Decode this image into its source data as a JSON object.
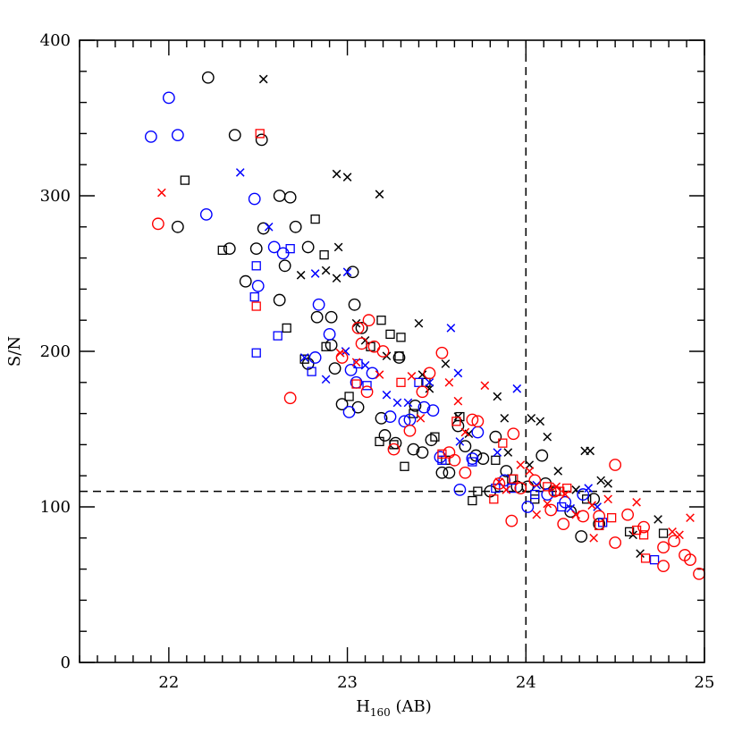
{
  "chart_data": {
    "type": "scatter",
    "xlabel_main": "H",
    "xlabel_sub": "160",
    "xlabel_suffix": " (AB)",
    "ylabel": "S/N",
    "xlim": [
      21.5,
      25
    ],
    "ylim": [
      0,
      400
    ],
    "xticks": [
      22,
      23,
      24,
      25
    ],
    "yticks": [
      0,
      100,
      200,
      300,
      400
    ],
    "x_minor_step": 0.1,
    "y_minor_step": 20,
    "grid": false,
    "reference_lines": [
      {
        "orientation": "vertical",
        "value": 24,
        "style": "dashed"
      },
      {
        "orientation": "horizontal",
        "value": 110,
        "style": "dashed"
      }
    ],
    "colors": {
      "black": "#000000",
      "blue": "#0000ff",
      "red": "#ff0000"
    },
    "series": [
      {
        "color": "black",
        "marker": "circle",
        "points": [
          [
            22.22,
            376
          ],
          [
            22.05,
            280
          ],
          [
            22.37,
            339
          ],
          [
            22.52,
            336
          ],
          [
            22.53,
            279
          ],
          [
            22.49,
            266
          ],
          [
            22.34,
            266
          ],
          [
            22.43,
            245
          ],
          [
            22.62,
            300
          ],
          [
            22.68,
            299
          ],
          [
            22.71,
            280
          ],
          [
            22.65,
            255
          ],
          [
            22.78,
            267
          ],
          [
            22.62,
            233
          ],
          [
            22.83,
            222
          ],
          [
            22.91,
            222
          ],
          [
            22.78,
            192
          ],
          [
            22.91,
            204
          ],
          [
            22.93,
            189
          ],
          [
            22.97,
            166
          ],
          [
            23.04,
            230
          ],
          [
            23.08,
            215
          ],
          [
            23.06,
            164
          ],
          [
            23.03,
            251
          ],
          [
            23.19,
            157
          ],
          [
            23.21,
            146
          ],
          [
            23.27,
            141
          ],
          [
            23.29,
            196
          ],
          [
            23.38,
            165
          ],
          [
            23.37,
            137
          ],
          [
            23.42,
            135
          ],
          [
            23.47,
            143
          ],
          [
            23.53,
            122
          ],
          [
            23.57,
            122
          ],
          [
            23.62,
            152
          ],
          [
            23.66,
            139
          ],
          [
            23.72,
            133
          ],
          [
            23.76,
            131
          ],
          [
            23.8,
            110
          ],
          [
            23.83,
            145
          ],
          [
            23.89,
            123
          ],
          [
            23.95,
            113
          ],
          [
            24.01,
            113
          ],
          [
            24.09,
            133
          ],
          [
            24.11,
            115
          ],
          [
            24.25,
            97
          ],
          [
            24.31,
            81
          ],
          [
            24.38,
            105
          ],
          [
            24.41,
            89
          ]
        ]
      },
      {
        "color": "black",
        "marker": "cross",
        "points": [
          [
            22.53,
            375
          ],
          [
            22.94,
            314
          ],
          [
            23.0,
            312
          ],
          [
            23.18,
            301
          ],
          [
            22.95,
            267
          ],
          [
            22.88,
            252
          ],
          [
            22.94,
            247
          ],
          [
            22.74,
            249
          ],
          [
            23.05,
            218
          ],
          [
            23.1,
            207
          ],
          [
            23.22,
            197
          ],
          [
            23.4,
            218
          ],
          [
            23.42,
            185
          ],
          [
            23.46,
            176
          ],
          [
            23.55,
            192
          ],
          [
            23.62,
            158
          ],
          [
            23.68,
            147
          ],
          [
            23.84,
            171
          ],
          [
            23.88,
            157
          ],
          [
            23.9,
            135
          ],
          [
            24.03,
            157
          ],
          [
            24.08,
            155
          ],
          [
            24.12,
            145
          ],
          [
            24.02,
            127
          ],
          [
            24.18,
            123
          ],
          [
            24.28,
            111
          ],
          [
            24.33,
            136
          ],
          [
            24.36,
            136
          ],
          [
            24.42,
            117
          ],
          [
            24.46,
            115
          ],
          [
            24.6,
            82
          ],
          [
            24.64,
            70
          ],
          [
            24.74,
            92
          ]
        ]
      },
      {
        "color": "black",
        "marker": "square",
        "points": [
          [
            22.09,
            310
          ],
          [
            22.3,
            265
          ],
          [
            22.82,
            285
          ],
          [
            22.87,
            262
          ],
          [
            22.66,
            215
          ],
          [
            22.76,
            195
          ],
          [
            22.88,
            203
          ],
          [
            23.01,
            171
          ],
          [
            23.13,
            203
          ],
          [
            23.19,
            220
          ],
          [
            23.24,
            211
          ],
          [
            23.3,
            209
          ],
          [
            23.29,
            197
          ],
          [
            23.18,
            142
          ],
          [
            23.26,
            140
          ],
          [
            23.32,
            126
          ],
          [
            23.37,
            160
          ],
          [
            23.44,
            180
          ],
          [
            23.49,
            145
          ],
          [
            23.55,
            130
          ],
          [
            23.63,
            158
          ],
          [
            23.7,
            104
          ],
          [
            23.73,
            110
          ],
          [
            23.83,
            130
          ],
          [
            23.92,
            118
          ],
          [
            24.05,
            105
          ],
          [
            24.17,
            110
          ],
          [
            24.34,
            105
          ],
          [
            24.41,
            88
          ],
          [
            24.58,
            84
          ],
          [
            24.77,
            83
          ]
        ]
      },
      {
        "color": "blue",
        "marker": "circle",
        "points": [
          [
            21.9,
            338
          ],
          [
            22.0,
            363
          ],
          [
            22.05,
            339
          ],
          [
            22.21,
            288
          ],
          [
            22.48,
            298
          ],
          [
            22.59,
            267
          ],
          [
            22.64,
            263
          ],
          [
            22.5,
            242
          ],
          [
            22.82,
            196
          ],
          [
            22.84,
            230
          ],
          [
            22.9,
            211
          ],
          [
            23.01,
            161
          ],
          [
            23.02,
            188
          ],
          [
            23.05,
            180
          ],
          [
            23.14,
            186
          ],
          [
            23.24,
            158
          ],
          [
            23.32,
            155
          ],
          [
            23.35,
            156
          ],
          [
            23.43,
            164
          ],
          [
            23.48,
            162
          ],
          [
            23.52,
            132
          ],
          [
            23.63,
            111
          ],
          [
            23.7,
            131
          ],
          [
            23.73,
            148
          ],
          [
            23.88,
            117
          ],
          [
            24.01,
            100
          ],
          [
            24.12,
            108
          ],
          [
            24.22,
            103
          ],
          [
            24.32,
            108
          ]
        ]
      },
      {
        "color": "blue",
        "marker": "cross",
        "points": [
          [
            22.4,
            315
          ],
          [
            22.56,
            280
          ],
          [
            22.82,
            250
          ],
          [
            22.76,
            196
          ],
          [
            22.88,
            182
          ],
          [
            22.99,
            200
          ],
          [
            23.0,
            251
          ],
          [
            23.1,
            191
          ],
          [
            23.22,
            172
          ],
          [
            23.28,
            167
          ],
          [
            23.34,
            167
          ],
          [
            23.46,
            180
          ],
          [
            23.58,
            215
          ],
          [
            23.62,
            186
          ],
          [
            23.63,
            142
          ],
          [
            23.95,
            176
          ],
          [
            23.84,
            135
          ],
          [
            24.06,
            114
          ],
          [
            24.25,
            99
          ],
          [
            24.35,
            112
          ],
          [
            24.4,
            100
          ]
        ]
      },
      {
        "color": "blue",
        "marker": "square",
        "points": [
          [
            22.49,
            255
          ],
          [
            22.48,
            235
          ],
          [
            22.49,
            199
          ],
          [
            22.68,
            266
          ],
          [
            22.61,
            210
          ],
          [
            22.8,
            187
          ],
          [
            23.06,
            192
          ],
          [
            23.11,
            178
          ],
          [
            23.4,
            180
          ],
          [
            23.53,
            130
          ],
          [
            23.7,
            129
          ],
          [
            23.83,
            112
          ],
          [
            23.92,
            112
          ],
          [
            24.05,
            108
          ],
          [
            24.2,
            100
          ],
          [
            24.43,
            90
          ],
          [
            24.72,
            66
          ]
        ]
      },
      {
        "color": "red",
        "marker": "circle",
        "points": [
          [
            21.94,
            282
          ],
          [
            22.68,
            170
          ],
          [
            22.97,
            196
          ],
          [
            23.06,
            215
          ],
          [
            23.12,
            220
          ],
          [
            23.08,
            205
          ],
          [
            23.15,
            203
          ],
          [
            23.2,
            200
          ],
          [
            23.11,
            174
          ],
          [
            23.26,
            137
          ],
          [
            23.35,
            149
          ],
          [
            23.42,
            174
          ],
          [
            23.46,
            186
          ],
          [
            23.53,
            199
          ],
          [
            23.57,
            135
          ],
          [
            23.6,
            130
          ],
          [
            23.66,
            122
          ],
          [
            23.7,
            156
          ],
          [
            23.73,
            155
          ],
          [
            23.85,
            115
          ],
          [
            23.93,
            147
          ],
          [
            23.92,
            91
          ],
          [
            23.97,
            112
          ],
          [
            24.05,
            117
          ],
          [
            24.16,
            110
          ],
          [
            24.21,
            89
          ],
          [
            24.14,
            98
          ],
          [
            24.32,
            94
          ],
          [
            24.41,
            94
          ],
          [
            24.5,
            127
          ],
          [
            24.5,
            77
          ],
          [
            24.57,
            95
          ],
          [
            24.66,
            87
          ],
          [
            24.77,
            74
          ],
          [
            24.77,
            62
          ],
          [
            24.83,
            78
          ],
          [
            24.89,
            69
          ],
          [
            24.92,
            66
          ],
          [
            24.97,
            57
          ]
        ]
      },
      {
        "color": "red",
        "marker": "cross",
        "points": [
          [
            21.96,
            302
          ],
          [
            22.96,
            199
          ],
          [
            23.05,
            193
          ],
          [
            23.18,
            185
          ],
          [
            23.36,
            184
          ],
          [
            23.41,
            157
          ],
          [
            23.57,
            180
          ],
          [
            23.62,
            168
          ],
          [
            23.66,
            148
          ],
          [
            23.77,
            178
          ],
          [
            23.85,
            116
          ],
          [
            23.89,
            111
          ],
          [
            23.97,
            127
          ],
          [
            24.02,
            123
          ],
          [
            24.06,
            95
          ],
          [
            24.12,
            102
          ],
          [
            24.17,
            113
          ],
          [
            24.22,
            108
          ],
          [
            24.28,
            95
          ],
          [
            24.37,
            101
          ],
          [
            24.38,
            80
          ],
          [
            24.46,
            105
          ],
          [
            24.62,
            103
          ],
          [
            24.82,
            84
          ],
          [
            24.86,
            82
          ],
          [
            24.92,
            93
          ]
        ]
      },
      {
        "color": "red",
        "marker": "square",
        "points": [
          [
            22.51,
            340
          ],
          [
            22.49,
            229
          ],
          [
            23.05,
            179
          ],
          [
            23.3,
            180
          ],
          [
            23.53,
            134
          ],
          [
            23.61,
            155
          ],
          [
            23.82,
            105
          ],
          [
            23.87,
            141
          ],
          [
            23.93,
            118
          ],
          [
            24.12,
            113
          ],
          [
            24.19,
            110
          ],
          [
            24.23,
            112
          ],
          [
            24.41,
            88
          ],
          [
            24.48,
            93
          ],
          [
            24.62,
            85
          ],
          [
            24.66,
            82
          ],
          [
            24.67,
            67
          ]
        ]
      }
    ]
  }
}
